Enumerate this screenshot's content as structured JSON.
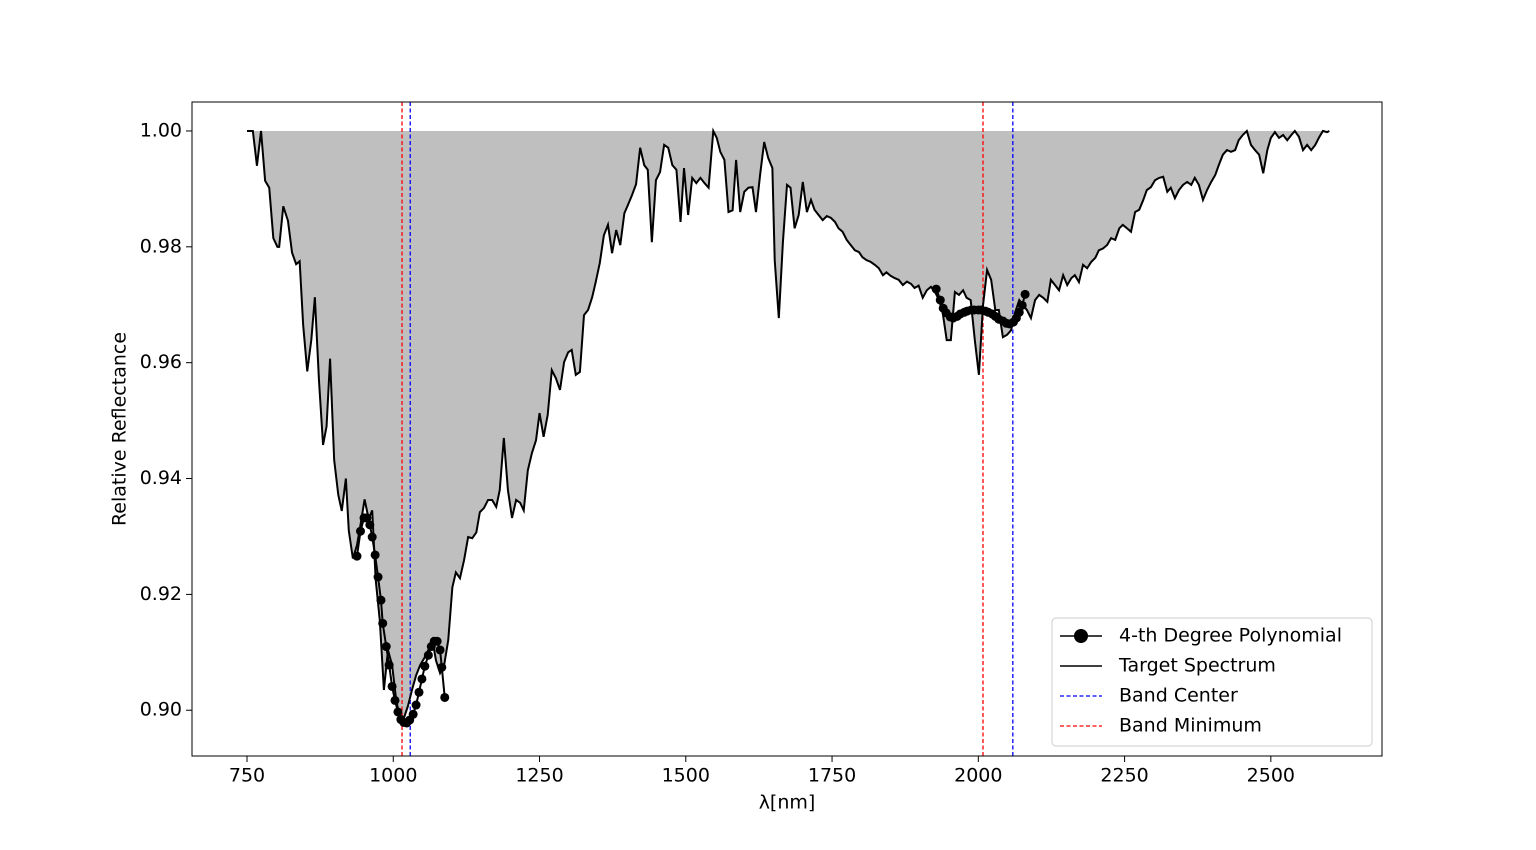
{
  "chart_data": {
    "type": "line",
    "xlabel": "λ[nm]",
    "ylabel": "Relative Reflectance",
    "xlim": [
      656,
      2690
    ],
    "ylim": [
      0.8921,
      1.005
    ],
    "xticks": [
      750,
      1000,
      1250,
      1500,
      1750,
      2000,
      2250,
      2500
    ],
    "yticks": [
      {
        "value": 0.9,
        "label": "0.90"
      },
      0.92,
      0.94,
      0.96,
      0.98,
      {
        "value": 1.0,
        "label": "1.00"
      }
    ],
    "legend": "lower right",
    "fill_color": "#bfbfbf",
    "series": [
      {
        "name": "4-th Degree Polynomial",
        "color": "#000000",
        "marker": "circle",
        "x": [
          938,
          944,
          950,
          955,
          960,
          964,
          969,
          974,
          979,
          982,
          988,
          993,
          998,
          1003,
          1008,
          1013,
          1018,
          1023,
          1028,
          1034,
          1039,
          1044,
          1049,
          1054,
          1060,
          1065,
          1070,
          1075,
          1080,
          1083,
          1088,
          null,
          1928,
          1935,
          1940,
          1945,
          1952,
          1957,
          1964,
          1969,
          1976,
          1981,
          1988,
          1993,
          2000,
          2005,
          2012,
          2017,
          2024,
          2029,
          2035,
          2042,
          2048,
          2053,
          2060,
          2065,
          2070,
          2075,
          2080
        ],
        "values": [
          0.9266,
          0.9309,
          0.9332,
          0.9332,
          0.932,
          0.9299,
          0.9268,
          0.923,
          0.919,
          0.915,
          0.911,
          0.9078,
          0.9041,
          0.9017,
          0.8997,
          0.8984,
          0.8979,
          0.8978,
          0.8983,
          0.8993,
          0.9009,
          0.9031,
          0.9054,
          0.9076,
          0.9095,
          0.911,
          0.9119,
          0.9119,
          0.9104,
          0.9074,
          0.9022,
          null,
          0.9727,
          0.9708,
          0.9694,
          0.9686,
          0.9679,
          0.9677,
          0.968,
          0.9684,
          0.9687,
          0.9689,
          0.9691,
          0.9691,
          0.9691,
          0.9691,
          0.9689,
          0.9687,
          0.9684,
          0.968,
          0.9675,
          0.9672,
          0.9668,
          0.9667,
          0.967,
          0.9677,
          0.9687,
          0.9699,
          0.9718
        ]
      },
      {
        "name": "Target Spectrum",
        "color": "#000000",
        "fill": true,
        "x": [
          750,
          760,
          767,
          774,
          781,
          788,
          795,
          802,
          805,
          812,
          820,
          827,
          834,
          840,
          846,
          853,
          860,
          866,
          873,
          880,
          886,
          892,
          899,
          906,
          912,
          919,
          924,
          931,
          938,
          944,
          951,
          958,
          964,
          970,
          977,
          984,
          991,
          998,
          1005,
          1011,
          1018,
          1025,
          1032,
          1039,
          1046,
          1053,
          1060,
          1067,
          1073,
          1080,
          1087,
          1094,
          1101,
          1107,
          1114,
          1121,
          1128,
          1135,
          1142,
          1148,
          1155,
          1162,
          1169,
          1176,
          1182,
          1189,
          1196,
          1203,
          1210,
          1217,
          1223,
          1230,
          1237,
          1244,
          1250,
          1257,
          1264,
          1271,
          1278,
          1285,
          1292,
          1299,
          1305,
          1312,
          1319,
          1326,
          1333,
          1340,
          1346,
          1353,
          1360,
          1367,
          1374,
          1381,
          1388,
          1395,
          1401,
          1408,
          1415,
          1422,
          1429,
          1435,
          1442,
          1449,
          1456,
          1463,
          1470,
          1477,
          1484,
          1491,
          1497,
          1504,
          1511,
          1518,
          1525,
          1532,
          1539,
          1547,
          1553,
          1559,
          1566,
          1573,
          1580,
          1586,
          1593,
          1600,
          1607,
          1614,
          1620,
          1627,
          1634,
          1641,
          1648,
          1652,
          1659,
          1666,
          1673,
          1679,
          1686,
          1693,
          1700,
          1707,
          1714,
          1720,
          1727,
          1734,
          1741,
          1748,
          1755,
          1761,
          1768,
          1775,
          1782,
          1789,
          1796,
          1802,
          1809,
          1816,
          1823,
          1830,
          1837,
          1843,
          1850,
          1857,
          1864,
          1871,
          1878,
          1885,
          1891,
          1898,
          1905,
          1912,
          1919,
          1926,
          1933,
          1939,
          1946,
          1953,
          1960,
          1967,
          1974,
          1980,
          1987,
          1994,
          2001,
          2008,
          2015,
          2022,
          2029,
          2035,
          2042,
          2049,
          2056,
          2063,
          2070,
          2077,
          2083,
          2090,
          2097,
          2104,
          2111,
          2118,
          2124,
          2131,
          2138,
          2145,
          2152,
          2159,
          2165,
          2172,
          2179,
          2186,
          2193,
          2200,
          2206,
          2213,
          2220,
          2227,
          2234,
          2241,
          2247,
          2254,
          2261,
          2268,
          2275,
          2282,
          2288,
          2295,
          2302,
          2309,
          2316,
          2323,
          2329,
          2336,
          2343,
          2350,
          2357,
          2364,
          2370,
          2377,
          2384,
          2391,
          2398,
          2405,
          2411,
          2418,
          2425,
          2432,
          2439,
          2445,
          2452,
          2459,
          2466,
          2473,
          2480,
          2487,
          2494,
          2500,
          2507,
          2514,
          2521,
          2528,
          2535,
          2541,
          2548,
          2555,
          2562,
          2569,
          2576,
          2582,
          2589,
          2596,
          2600
        ],
        "values": [
          1.0,
          1.0,
          0.994,
          1.0,
          0.9914,
          0.9902,
          0.9815,
          0.98,
          0.98,
          0.987,
          0.9845,
          0.979,
          0.977,
          0.9775,
          0.9665,
          0.9585,
          0.964,
          0.9713,
          0.957,
          0.9458,
          0.949,
          0.9607,
          0.9432,
          0.9372,
          0.9344,
          0.94,
          0.931,
          0.9262,
          0.9285,
          0.932,
          0.9364,
          0.933,
          0.9345,
          0.9225,
          0.9155,
          0.9035,
          0.9104,
          0.9078,
          0.9018,
          0.8988,
          0.8986,
          0.9007,
          0.9035,
          0.906,
          0.9078,
          0.909,
          0.9104,
          0.9121,
          0.9086,
          0.9064,
          0.9078,
          0.9121,
          0.9212,
          0.9238,
          0.9228,
          0.9259,
          0.9299,
          0.9297,
          0.9307,
          0.9342,
          0.9349,
          0.9363,
          0.9363,
          0.9351,
          0.938,
          0.947,
          0.938,
          0.9332,
          0.9363,
          0.9358,
          0.9345,
          0.9414,
          0.9444,
          0.9466,
          0.9513,
          0.9472,
          0.951,
          0.9587,
          0.9573,
          0.9553,
          0.9601,
          0.9618,
          0.9622,
          0.9579,
          0.9584,
          0.9682,
          0.9691,
          0.9713,
          0.9739,
          0.9772,
          0.982,
          0.9838,
          0.9789,
          0.9829,
          0.9803,
          0.9858,
          0.9872,
          0.9889,
          0.9908,
          0.9971,
          0.9941,
          0.9933,
          0.9808,
          0.9915,
          0.9929,
          0.9976,
          0.9971,
          0.9941,
          0.9933,
          0.9843,
          0.9936,
          0.9855,
          0.9919,
          0.991,
          0.9919,
          0.991,
          0.9902,
          1.0,
          0.9988,
          0.9964,
          0.995,
          0.986,
          0.9863,
          0.995,
          0.986,
          0.9895,
          0.9902,
          0.9903,
          0.986,
          0.9924,
          0.9981,
          0.9953,
          0.9936,
          0.9777,
          0.9677,
          0.9808,
          0.9907,
          0.9902,
          0.9832,
          0.9855,
          0.9912,
          0.986,
          0.9881,
          0.9864,
          0.9855,
          0.9846,
          0.9853,
          0.985,
          0.9843,
          0.9832,
          0.9826,
          0.9812,
          0.9803,
          0.9794,
          0.9791,
          0.9782,
          0.9777,
          0.9774,
          0.9769,
          0.9763,
          0.9751,
          0.9756,
          0.975,
          0.9746,
          0.9743,
          0.9734,
          0.974,
          0.9736,
          0.9729,
          0.9733,
          0.9712,
          0.9725,
          0.9731,
          0.9722,
          0.9708,
          0.9687,
          0.9639,
          0.9639,
          0.9722,
          0.9717,
          0.9725,
          0.9712,
          0.9708,
          0.9639,
          0.9579,
          0.9699,
          0.976,
          0.9743,
          0.9691,
          0.9691,
          0.9644,
          0.9648,
          0.9656,
          0.9687,
          0.9708,
          0.9699,
          0.9691,
          0.9677,
          0.9708,
          0.9717,
          0.9712,
          0.9705,
          0.9743,
          0.9734,
          0.9725,
          0.9751,
          0.9734,
          0.9746,
          0.9751,
          0.9739,
          0.9769,
          0.9763,
          0.9774,
          0.9781,
          0.9794,
          0.9797,
          0.9803,
          0.9815,
          0.9812,
          0.9832,
          0.9838,
          0.9832,
          0.9826,
          0.986,
          0.9864,
          0.9881,
          0.9898,
          0.9903,
          0.9915,
          0.9919,
          0.9921,
          0.9895,
          0.9902,
          0.9884,
          0.9898,
          0.9907,
          0.9912,
          0.9907,
          0.9919,
          0.9907,
          0.9881,
          0.9898,
          0.9912,
          0.9924,
          0.9941,
          0.9959,
          0.9967,
          0.9964,
          0.9967,
          0.9984,
          0.9993,
          1.0,
          0.9976,
          0.9967,
          0.9959,
          0.9927,
          0.9967,
          0.9988,
          0.9998,
          0.9988,
          0.9993,
          0.9984,
          0.9993,
          1.0,
          0.999,
          0.9967,
          0.9976,
          0.9967,
          0.9976,
          0.9988,
          1.0,
          0.9998,
          1.0
        ]
      },
      {
        "name": "Band Center",
        "color": "#0000ff",
        "vline": true,
        "x": [
          1029,
          2059
        ]
      },
      {
        "name": "Band Minimum",
        "color": "#ff0000",
        "vline": true,
        "x": [
          1015,
          2008
        ]
      }
    ]
  }
}
